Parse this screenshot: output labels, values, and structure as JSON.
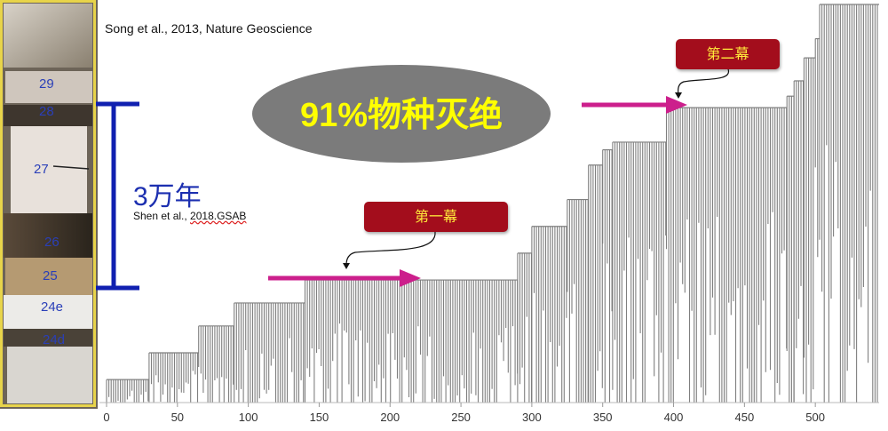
{
  "citations": {
    "top": "Song et al., 2013, Nature Geoscience",
    "mid_prefix": "Shen et al., ",
    "mid_underlined": "2018.GSAB"
  },
  "duration_label": "3万年",
  "extinction_label": "91%物种灭绝",
  "acts": {
    "first": "第一幕",
    "second": "第二幕"
  },
  "strata_labels": [
    "29",
    "28",
    "27",
    "26",
    "25",
    "24e",
    "24d"
  ],
  "colors": {
    "bars": "#7f7f7f",
    "arrows": "#cc1f8c",
    "bracket": "#1020b0",
    "act_box": "#a30d1c",
    "act_text": "#ffeb3b",
    "ellipse": "#7b7b7b",
    "ellipse_text": "#ffff00",
    "column_border": "#e8d44a"
  },
  "chart_data": {
    "type": "bar",
    "xlim": [
      -5,
      545
    ],
    "ylim": [
      0,
      100
    ],
    "x_ticks": [
      0,
      50,
      100,
      150,
      200,
      250,
      300,
      350,
      400,
      450,
      500
    ],
    "grid": false,
    "steps": [
      {
        "start": 0,
        "end": 30,
        "level": 6
      },
      {
        "start": 30,
        "end": 65,
        "level": 13
      },
      {
        "start": 65,
        "end": 90,
        "level": 20
      },
      {
        "start": 90,
        "end": 140,
        "level": 26
      },
      {
        "start": 140,
        "end": 290,
        "level": 32
      },
      {
        "start": 290,
        "end": 300,
        "level": 39
      },
      {
        "start": 300,
        "end": 325,
        "level": 46
      },
      {
        "start": 325,
        "end": 340,
        "level": 53
      },
      {
        "start": 340,
        "end": 350,
        "level": 62
      },
      {
        "start": 350,
        "end": 357,
        "level": 66
      },
      {
        "start": 357,
        "end": 395,
        "level": 68
      },
      {
        "start": 395,
        "end": 480,
        "level": 77
      },
      {
        "start": 480,
        "end": 485,
        "level": 80
      },
      {
        "start": 485,
        "end": 492,
        "level": 84
      },
      {
        "start": 492,
        "end": 500,
        "level": 90
      },
      {
        "start": 500,
        "end": 503,
        "level": 95
      },
      {
        "start": 503,
        "end": 545,
        "level": 104
      }
    ],
    "annotations": [
      {
        "text": "第一幕",
        "x": 215,
        "level": 32
      },
      {
        "text": "第二幕",
        "x": 400,
        "level": 77
      }
    ]
  }
}
